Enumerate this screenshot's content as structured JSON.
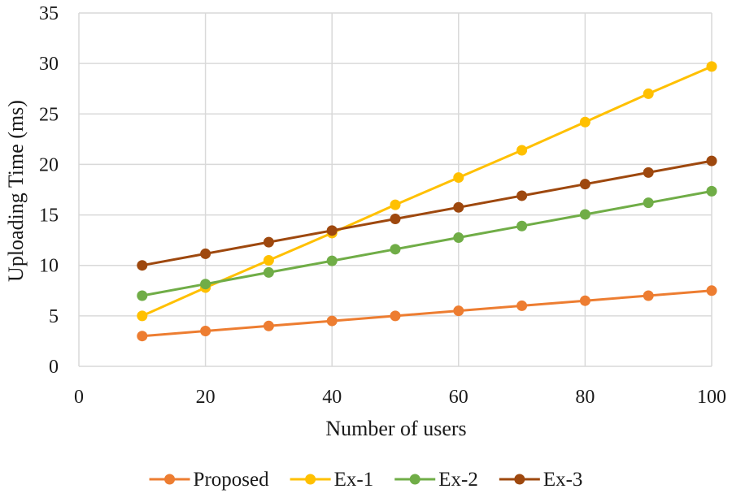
{
  "chart_data": {
    "type": "line",
    "title": "",
    "xlabel": "Number of users",
    "ylabel": "Uploading Time (ms)",
    "xlim": [
      0,
      100
    ],
    "ylim": [
      0,
      35
    ],
    "xticks": [
      0,
      20,
      40,
      60,
      80,
      100
    ],
    "yticks": [
      0,
      5,
      10,
      15,
      20,
      25,
      30,
      35
    ],
    "grid": true,
    "legend_position": "bottom",
    "x": [
      10,
      20,
      30,
      40,
      50,
      60,
      70,
      80,
      90,
      100
    ],
    "series": [
      {
        "name": "Proposed",
        "color": "#ED7D31",
        "values": [
          3,
          3.5,
          4,
          4.5,
          5,
          5.5,
          6,
          6.5,
          7,
          7.5
        ]
      },
      {
        "name": "Ex-1",
        "color": "#FFC000",
        "values": [
          5,
          7.8,
          10.5,
          13.2,
          16,
          18.7,
          21.4,
          24.2,
          27,
          29.7
        ]
      },
      {
        "name": "Ex-2",
        "color": "#70AD47",
        "values": [
          7,
          8.15,
          9.3,
          10.45,
          11.6,
          12.75,
          13.9,
          15.05,
          16.2,
          17.35
        ]
      },
      {
        "name": "Ex-3",
        "color": "#9E480E",
        "values": [
          10,
          11.15,
          12.3,
          13.45,
          14.6,
          15.75,
          16.9,
          18.05,
          19.2,
          20.35
        ]
      }
    ]
  }
}
